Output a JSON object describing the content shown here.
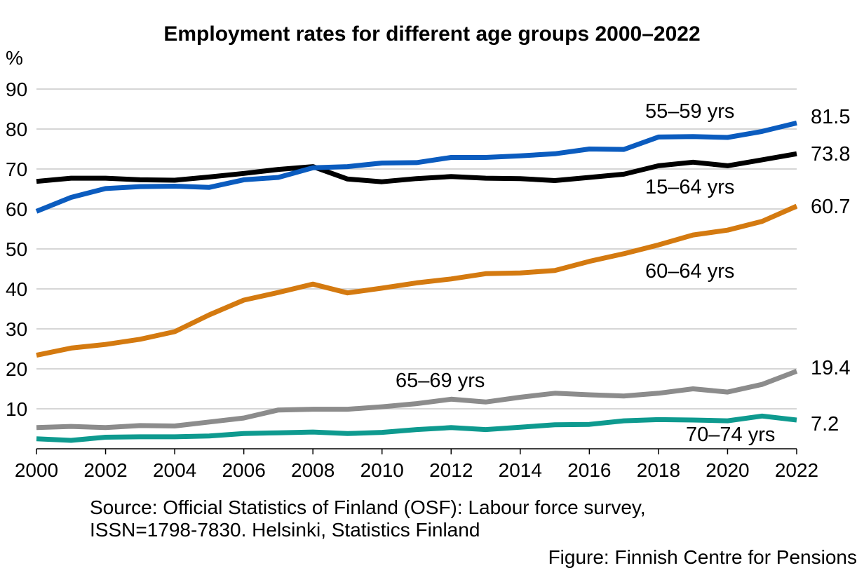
{
  "chart_data": {
    "type": "line",
    "title": "Employment rates for different age groups 2000–2022",
    "ylabel": "%",
    "xlabel": "",
    "ylim": [
      0,
      90
    ],
    "xlim": [
      2000,
      2022
    ],
    "y_ticks": [
      "10",
      "20",
      "30",
      "40",
      "50",
      "60",
      "70",
      "80",
      "90"
    ],
    "x_ticks": [
      "2000",
      "2002",
      "2004",
      "2006",
      "2008",
      "2010",
      "2012",
      "2014",
      "2016",
      "2018",
      "2020",
      "2022"
    ],
    "grid": true,
    "x": [
      2000,
      2001,
      2002,
      2003,
      2004,
      2005,
      2006,
      2007,
      2008,
      2009,
      2010,
      2011,
      2012,
      2013,
      2014,
      2015,
      2016,
      2017,
      2018,
      2019,
      2020,
      2021,
      2022
    ],
    "series": [
      {
        "name": "15–64 yrs",
        "color": "#000000",
        "end_label": "73.8",
        "values": [
          66.9,
          67.7,
          67.7,
          67.3,
          67.2,
          68.0,
          68.9,
          69.9,
          70.6,
          67.5,
          66.8,
          67.6,
          68.1,
          67.7,
          67.6,
          67.1,
          67.9,
          68.7,
          70.8,
          71.7,
          70.8,
          72.3,
          73.8
        ]
      },
      {
        "name": "55–59 yrs",
        "color": "#0b5cbf",
        "end_label": "81.5",
        "values": [
          59.4,
          62.9,
          65.1,
          65.6,
          65.7,
          65.4,
          67.3,
          67.9,
          70.3,
          70.6,
          71.5,
          71.6,
          72.9,
          72.9,
          73.3,
          73.8,
          75.0,
          74.9,
          78.0,
          78.1,
          77.9,
          79.4,
          81.5
        ]
      },
      {
        "name": "60–64 yrs",
        "color": "#d47a10",
        "end_label": "60.7",
        "values": [
          23.4,
          25.2,
          26.1,
          27.4,
          29.3,
          33.5,
          37.2,
          39.1,
          41.2,
          39.0,
          40.2,
          41.5,
          42.5,
          43.8,
          44.0,
          44.6,
          46.9,
          48.8,
          51.0,
          53.5,
          54.7,
          56.9,
          60.7
        ]
      },
      {
        "name": "65–69 yrs",
        "color": "#8c8c8c",
        "end_label": "19.4",
        "values": [
          5.3,
          5.6,
          5.3,
          5.8,
          5.7,
          6.7,
          7.7,
          9.7,
          9.9,
          9.9,
          10.5,
          11.3,
          12.4,
          11.7,
          12.9,
          13.9,
          13.5,
          13.2,
          13.9,
          15.0,
          14.2,
          16.1,
          19.4
        ]
      },
      {
        "name": "70–74 yrs",
        "color": "#0e9a8f",
        "end_label": "7.2",
        "values": [
          2.5,
          2.1,
          2.9,
          3.0,
          3.0,
          3.2,
          3.8,
          4.0,
          4.2,
          3.8,
          4.1,
          4.8,
          5.3,
          4.8,
          5.4,
          6.0,
          6.1,
          7.0,
          7.3,
          7.2,
          7.0,
          8.2,
          7.2
        ]
      }
    ],
    "source": "Source: Official Statistics of Finland (OSF): Labour force survey,",
    "source_line2": "ISSN=1798-7830. Helsinki, Statistics Finland",
    "credit": "Figure: Finnish Centre for Pensions"
  }
}
